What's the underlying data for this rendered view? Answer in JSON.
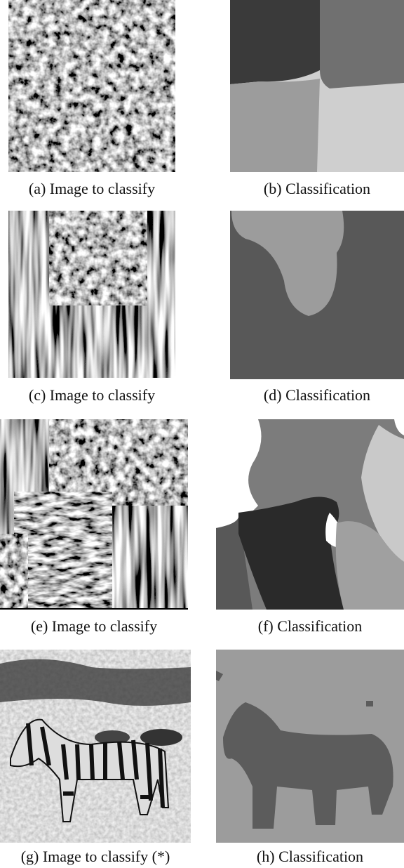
{
  "figure": {
    "panels": [
      {
        "caption": "(a) Image to classify"
      },
      {
        "caption": "(b) Classification"
      },
      {
        "caption": "(c) Image to classify"
      },
      {
        "caption": "(d) Classification"
      },
      {
        "caption": "(e) Image to classify"
      },
      {
        "caption": "(f) Classification"
      },
      {
        "caption": "(g) Image to classify (*)"
      },
      {
        "caption": "(h) Classification"
      }
    ]
  }
}
